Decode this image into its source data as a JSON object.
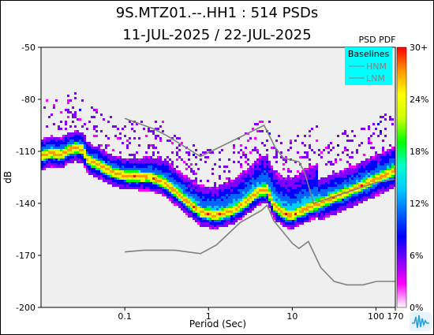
{
  "title_line1": "9S.MTZ01.--.HH1 : 514 PSDs",
  "title_line2": "11-JUL-2025 / 22-JUL-2025",
  "chart_data": {
    "type": "heatmap",
    "xlabel": "Period (Sec)",
    "ylabel": "dB",
    "x_scale": "log",
    "xlim": [
      0.01,
      170
    ],
    "ylim": [
      -200,
      -50
    ],
    "x_ticks": [
      0.1,
      1,
      10,
      100,
      170
    ],
    "x_tick_labels": [
      "0.1",
      "1",
      "10",
      "100",
      "170"
    ],
    "y_ticks": [
      -50,
      -80,
      -110,
      -140,
      -170,
      -200
    ],
    "y_tick_labels": [
      "-50",
      "-80",
      "-110",
      "-140",
      "-170",
      "-200"
    ],
    "colorbar": {
      "label": "PSD PDF",
      "ticks": [
        "30+",
        "24%",
        "18%",
        "12%",
        "6%",
        "0%"
      ],
      "colors": [
        "#ffffff",
        "#ff00ff",
        "#8000ff",
        "#0000ff",
        "#0066ff",
        "#00ccff",
        "#00ffcc",
        "#00ff00",
        "#ccff00",
        "#ffff00",
        "#ff9900",
        "#ff0000"
      ]
    },
    "legend": {
      "title": "Baselines",
      "entries": [
        "HNM",
        "LNM"
      ],
      "position": "top-right",
      "background": "#00ffff"
    },
    "series": [
      {
        "name": "HNM",
        "color": "#808080",
        "points": [
          [
            0.1,
            -91
          ],
          [
            0.22,
            -97
          ],
          [
            0.32,
            -101
          ],
          [
            0.8,
            -113
          ],
          [
            3.8,
            -97
          ],
          [
            4.6,
            -95
          ],
          [
            5.2,
            -100
          ],
          [
            6.3,
            -108
          ],
          [
            7.9,
            -114
          ],
          [
            12,
            -116
          ],
          [
            14,
            -122
          ],
          [
            18,
            -140
          ],
          [
            100,
            -128
          ],
          [
            170,
            -126
          ]
        ]
      },
      {
        "name": "LNM",
        "color": "#808080",
        "points": [
          [
            0.1,
            -168
          ],
          [
            0.17,
            -167
          ],
          [
            0.4,
            -167
          ],
          [
            0.8,
            -169
          ],
          [
            1.24,
            -164
          ],
          [
            2.4,
            -151
          ],
          [
            4.3,
            -144
          ],
          [
            5,
            -141
          ],
          [
            6,
            -150
          ],
          [
            10,
            -163
          ],
          [
            12,
            -166
          ],
          [
            15.6,
            -162
          ],
          [
            21.9,
            -177
          ],
          [
            31.6,
            -185
          ],
          [
            45,
            -187
          ],
          [
            70,
            -187
          ],
          [
            101,
            -185
          ],
          [
            170,
            -185
          ]
        ]
      }
    ],
    "mode_curve": {
      "name": "mode",
      "points": [
        [
          0.01,
          -113
        ],
        [
          0.013,
          -111
        ],
        [
          0.017,
          -112
        ],
        [
          0.022,
          -109
        ],
        [
          0.026,
          -108
        ],
        [
          0.032,
          -109
        ],
        [
          0.035,
          -114
        ],
        [
          0.04,
          -116
        ],
        [
          0.05,
          -118
        ],
        [
          0.07,
          -122
        ],
        [
          0.1,
          -124
        ],
        [
          0.2,
          -125
        ],
        [
          0.3,
          -128
        ],
        [
          0.5,
          -137
        ],
        [
          0.8,
          -145
        ],
        [
          1.2,
          -147
        ],
        [
          2,
          -144
        ],
        [
          3,
          -138
        ],
        [
          4,
          -133
        ],
        [
          5,
          -132
        ],
        [
          6,
          -141
        ],
        [
          8,
          -146
        ],
        [
          10,
          -147
        ],
        [
          15,
          -143
        ],
        [
          30,
          -137
        ],
        [
          60,
          -131
        ],
        [
          100,
          -126
        ],
        [
          170,
          -121
        ]
      ]
    }
  },
  "watermark_icon": "waveform-logo-icon"
}
